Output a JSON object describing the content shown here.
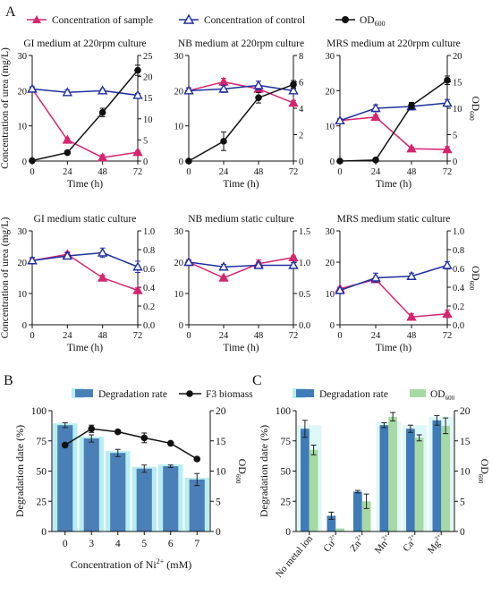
{
  "panel_letters": {
    "A": "A",
    "B": "B",
    "C": "C"
  },
  "legend_A": {
    "sample": "Concentration of sample",
    "control": "Concentration of control",
    "od": "OD600"
  },
  "colors": {
    "sample": "#d6256e",
    "control": "#1e2f9f",
    "od": "#111111",
    "bar_degradation_B": "#4a7fb7",
    "bar_highlight_B": "#b8eef2",
    "bar_degradation_C": "#3e7bb8",
    "bar_od_C": "#a6d9a3"
  },
  "chart_data": [
    {
      "id": "A1",
      "type": "line",
      "title": "GI medium at 220rpm culture",
      "xlabel": "Time (h)",
      "ylabel": "Concentration of urea (mg/L)",
      "ylabel_right": "",
      "x": [
        0,
        24,
        48,
        72
      ],
      "xlim": [
        0,
        72
      ],
      "ylim": [
        0,
        30
      ],
      "ylim_right": [
        0,
        25
      ],
      "yticks": [
        0,
        10,
        20,
        30
      ],
      "yticks_right": [
        0,
        5,
        10,
        15,
        20,
        25
      ],
      "series": [
        {
          "name": "Concentration of sample",
          "axis": "left",
          "values": [
            20.5,
            6,
            1,
            2.5
          ],
          "err": [
            0.5,
            0.4,
            0.8,
            0.4
          ]
        },
        {
          "name": "Concentration of control",
          "axis": "left",
          "values": [
            20.5,
            19.5,
            20,
            18.7
          ],
          "err": [
            0.6,
            0.7,
            0.5,
            0.5
          ]
        },
        {
          "name": "OD600",
          "axis": "right",
          "values": [
            0.1,
            2,
            11.5,
            21.5
          ],
          "err": [
            0,
            0.2,
            1,
            1.2
          ]
        }
      ]
    },
    {
      "id": "A2",
      "type": "line",
      "title": "NB medium at 220rpm culture",
      "xlabel": "Time (h)",
      "ylabel": "",
      "ylabel_right": "",
      "x": [
        0,
        24,
        48,
        72
      ],
      "xlim": [
        0,
        72
      ],
      "ylim": [
        0,
        30
      ],
      "ylim_right": [
        0,
        8
      ],
      "yticks": [
        0,
        10,
        20,
        30
      ],
      "yticks_right": [
        0,
        2,
        4,
        6,
        8
      ],
      "series": [
        {
          "name": "Concentration of sample",
          "axis": "left",
          "values": [
            20,
            22.5,
            20.5,
            16.5
          ],
          "err": [
            0.8,
            1,
            1,
            0.7
          ]
        },
        {
          "name": "Concentration of control",
          "axis": "left",
          "values": [
            20,
            20.5,
            21.5,
            20
          ],
          "err": [
            0.8,
            1,
            1.2,
            0.8
          ]
        },
        {
          "name": "OD600",
          "axis": "right",
          "values": [
            0,
            1.5,
            4.8,
            5.8
          ],
          "err": [
            0,
            0.7,
            0.4,
            0.3
          ]
        }
      ]
    },
    {
      "id": "A3",
      "type": "line",
      "title": "MRS medium at 220rpm culture",
      "xlabel": "Time (h)",
      "ylabel": "",
      "ylabel_right": "OD600",
      "x": [
        0,
        24,
        48,
        72
      ],
      "xlim": [
        0,
        72
      ],
      "ylim": [
        0,
        30
      ],
      "ylim_right": [
        0,
        20
      ],
      "yticks": [
        0,
        10,
        20,
        30
      ],
      "yticks_right": [
        0,
        5,
        10,
        15,
        20
      ],
      "series": [
        {
          "name": "Concentration of sample",
          "axis": "left",
          "values": [
            11.5,
            12.5,
            3.5,
            3.3
          ],
          "err": [
            0.5,
            0.6,
            0.5,
            0.8
          ]
        },
        {
          "name": "Concentration of control",
          "axis": "left",
          "values": [
            11.5,
            15,
            15.5,
            16.5
          ],
          "err": [
            0.5,
            1,
            1,
            1
          ]
        },
        {
          "name": "OD600",
          "axis": "right",
          "values": [
            0,
            0.2,
            10.5,
            15.3
          ],
          "err": [
            0,
            0.2,
            0.6,
            0.8
          ]
        }
      ]
    },
    {
      "id": "A4",
      "type": "line",
      "title": "GI medium static culture",
      "xlabel": "Time (h)",
      "ylabel": "Concentration of urea (mg/L)",
      "ylabel_right": "",
      "x": [
        0,
        24,
        48,
        72
      ],
      "xlim": [
        0,
        72
      ],
      "ylim": [
        0,
        30
      ],
      "ylim_right": [
        0,
        1.0
      ],
      "yticks": [
        0,
        10,
        20,
        30
      ],
      "yticks_right": [
        0.0,
        0.2,
        0.4,
        0.6,
        0.8,
        1.0
      ],
      "series": [
        {
          "name": "Concentration of sample",
          "axis": "left",
          "values": [
            20.5,
            22.5,
            15,
            11
          ],
          "err": [
            0.8,
            0.8,
            0.8,
            0.8
          ]
        },
        {
          "name": "Concentration of control",
          "axis": "left",
          "values": [
            20.5,
            22,
            23,
            18.5
          ],
          "err": [
            1,
            1,
            1.5,
            1.8
          ]
        }
      ]
    },
    {
      "id": "A5",
      "type": "line",
      "title": "NB medium static culture",
      "xlabel": "Time (h)",
      "ylabel": "",
      "ylabel_right": "",
      "x": [
        0,
        24,
        48,
        72
      ],
      "xlim": [
        0,
        72
      ],
      "ylim": [
        0,
        30
      ],
      "ylim_right": [
        0,
        1.5
      ],
      "yticks": [
        0,
        10,
        20,
        30
      ],
      "yticks_right": [
        0.0,
        0.5,
        1.0,
        1.5
      ],
      "series": [
        {
          "name": "Concentration of sample",
          "axis": "left",
          "values": [
            20,
            15,
            19.5,
            21.5
          ],
          "err": [
            0.5,
            0.5,
            1.2,
            0.5
          ]
        },
        {
          "name": "Concentration of control",
          "axis": "left",
          "values": [
            20,
            18.5,
            19,
            19
          ],
          "err": [
            0.8,
            0.8,
            1,
            0.8
          ]
        }
      ]
    },
    {
      "id": "A6",
      "type": "line",
      "title": "MRS medium static culture",
      "xlabel": "Time (h)",
      "ylabel": "",
      "ylabel_right": "OD600",
      "x": [
        0,
        24,
        48,
        72
      ],
      "xlim": [
        0,
        72
      ],
      "ylim": [
        0,
        30
      ],
      "ylim_right": [
        0,
        1.0
      ],
      "yticks": [
        0,
        10,
        20,
        30
      ],
      "yticks_right": [
        0.0,
        0.2,
        0.4,
        0.6,
        0.8,
        1.0
      ],
      "series": [
        {
          "name": "Concentration of sample",
          "axis": "left",
          "values": [
            11.5,
            14.5,
            2.5,
            3.5
          ],
          "err": [
            0.5,
            0.5,
            1,
            1.2
          ]
        },
        {
          "name": "Concentration of control",
          "axis": "left",
          "values": [
            11,
            15,
            15.5,
            19
          ],
          "err": [
            0.5,
            1.5,
            1,
            1.2
          ]
        }
      ]
    },
    {
      "id": "B",
      "type": "bar",
      "categories": [
        "0",
        "3",
        "4",
        "5",
        "6",
        "7"
      ],
      "xlabel": "Concentration of Ni2+ (mM)",
      "ylabel": "Degradation date (%)",
      "ylabel_right": "OD600",
      "ylim": [
        0,
        100
      ],
      "ylim_right": [
        0,
        20
      ],
      "yticks": [
        0,
        25,
        50,
        75,
        100
      ],
      "yticks_right": [
        0,
        5,
        10,
        15,
        20
      ],
      "legend": [
        "Degradation rate",
        "F3 biomass"
      ],
      "series": [
        {
          "name": "Degradation rate",
          "kind": "bar",
          "axis": "left",
          "values": [
            88,
            77,
            65,
            52,
            54,
            43
          ],
          "err": [
            2,
            3,
            3,
            3,
            1,
            5
          ]
        },
        {
          "name": "F3 biomass",
          "kind": "line",
          "axis": "right",
          "values": [
            14.3,
            17,
            16.5,
            15.5,
            14.6,
            12
          ],
          "err": [
            0,
            0.6,
            0.3,
            0.8,
            0,
            0
          ]
        }
      ]
    },
    {
      "id": "C",
      "type": "bar",
      "categories": [
        "No metal ion",
        "Cu2+",
        "Zn2+",
        "Mn2+",
        "Ca2+",
        "Mg2+"
      ],
      "xlabel": "",
      "ylabel": "Degradation date (%)",
      "ylabel_right": "OD600",
      "ylim": [
        0,
        100
      ],
      "ylim_right": [
        0,
        20
      ],
      "yticks": [
        0,
        25,
        50,
        75,
        100
      ],
      "yticks_right": [
        0,
        5,
        10,
        15,
        20
      ],
      "legend": [
        "Degradation rate",
        "OD600"
      ],
      "series": [
        {
          "name": "Degradation rate",
          "kind": "bar",
          "axis": "left",
          "values": [
            85,
            13,
            33,
            88,
            85,
            92
          ],
          "err": [
            7,
            3,
            1,
            2,
            3,
            4
          ]
        },
        {
          "name": "OD600",
          "kind": "bar",
          "axis": "right",
          "values": [
            13.5,
            0.5,
            5,
            19,
            15.5,
            17.5
          ],
          "err": [
            0.8,
            0,
            1.2,
            0.7,
            0.5,
            1.3
          ]
        }
      ]
    }
  ]
}
